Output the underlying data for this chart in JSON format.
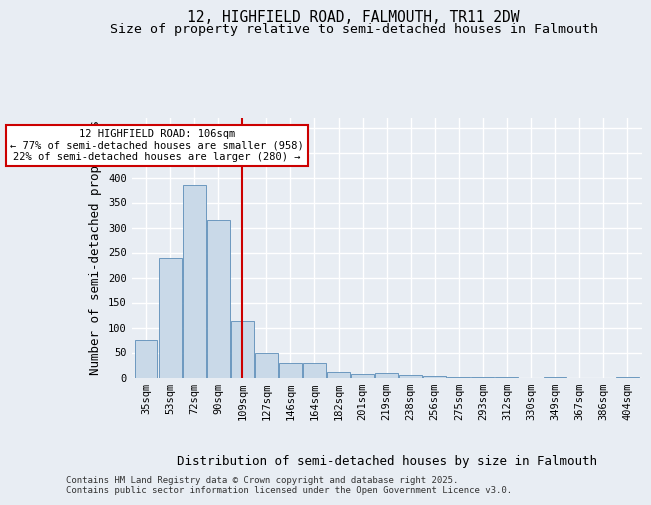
{
  "title_line1": "12, HIGHFIELD ROAD, FALMOUTH, TR11 2DW",
  "title_line2": "Size of property relative to semi-detached houses in Falmouth",
  "xlabel": "Distribution of semi-detached houses by size in Falmouth",
  "ylabel": "Number of semi-detached properties",
  "categories": [
    "35sqm",
    "53sqm",
    "72sqm",
    "90sqm",
    "109sqm",
    "127sqm",
    "146sqm",
    "164sqm",
    "182sqm",
    "201sqm",
    "219sqm",
    "238sqm",
    "256sqm",
    "275sqm",
    "293sqm",
    "312sqm",
    "330sqm",
    "349sqm",
    "367sqm",
    "386sqm",
    "404sqm"
  ],
  "values": [
    75,
    240,
    385,
    315,
    113,
    50,
    29,
    29,
    12,
    7,
    9,
    6,
    4,
    2,
    1,
    2,
    0,
    1,
    0,
    0,
    1
  ],
  "bar_color": "#c9d9e8",
  "bar_edge_color": "#5b8db8",
  "property_line_x": 4.0,
  "property_line_color": "#cc0000",
  "annotation_text": "12 HIGHFIELD ROAD: 106sqm\n← 77% of semi-detached houses are smaller (958)\n22% of semi-detached houses are larger (280) →",
  "annotation_box_color": "#cc0000",
  "ylim": [
    0,
    520
  ],
  "yticks": [
    0,
    50,
    100,
    150,
    200,
    250,
    300,
    350,
    400,
    450,
    500
  ],
  "footnote": "Contains HM Land Registry data © Crown copyright and database right 2025.\nContains public sector information licensed under the Open Government Licence v3.0.",
  "bg_color": "#e8edf3",
  "plot_bg_color": "#e8edf3",
  "grid_color": "#ffffff",
  "title_fontsize": 10.5,
  "subtitle_fontsize": 9.5,
  "axis_label_fontsize": 9,
  "tick_fontsize": 7.5,
  "footnote_fontsize": 6.5
}
